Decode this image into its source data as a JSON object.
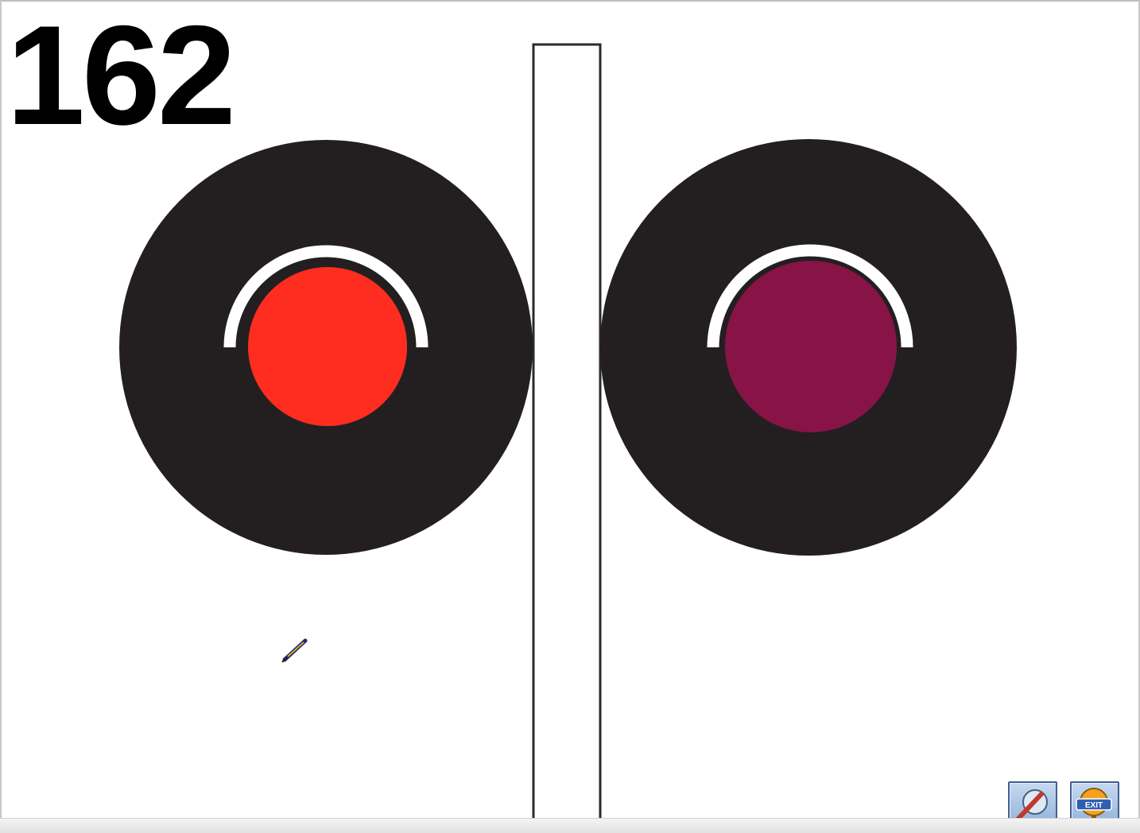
{
  "slide": {
    "number": "162"
  },
  "signal": {
    "left_lamp": {
      "lens_color": "#ff2d1f"
    },
    "right_lamp": {
      "lens_color": "#871347"
    },
    "background_color": "#231f20"
  },
  "toolbar": {
    "pen_icon": "pen-tool-icon",
    "exit_icon": "exit-icon",
    "exit_label": "EXIT"
  }
}
